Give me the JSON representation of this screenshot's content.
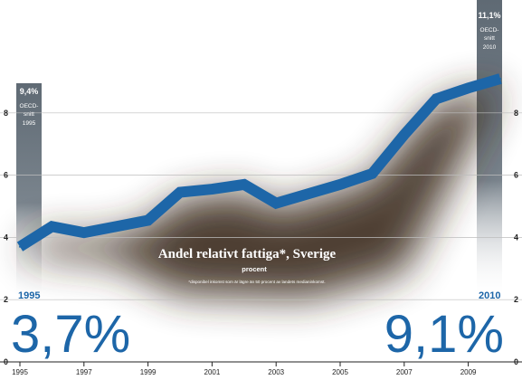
{
  "chart_data": {
    "type": "line",
    "title": "Andel relativt fattiga*, Sverige",
    "subtitle": "procent",
    "footnote": "*disponibel inkomst som är lägre än 50 procent av landets medianinkomst.",
    "x": [
      1995,
      1996,
      1997,
      1998,
      1999,
      2000,
      2001,
      2002,
      2003,
      2004,
      2005,
      2006,
      2007,
      2008,
      2009,
      2010
    ],
    "series": [
      {
        "values": [
          3.7,
          4.35,
          4.15,
          4.35,
          4.55,
          5.45,
          5.55,
          5.7,
          5.1,
          5.4,
          5.7,
          6.05,
          7.3,
          8.45,
          8.8,
          9.1
        ]
      }
    ],
    "xticks": [
      "1995",
      "1997",
      "1999",
      "2001",
      "2003",
      "2005",
      "2007",
      "2009"
    ],
    "yticks": [
      "0",
      "2",
      "4",
      "6",
      "8"
    ],
    "ylim": [
      0,
      9.5
    ],
    "xlim": [
      1995,
      2010
    ],
    "grid": true,
    "colors": {
      "line": "#1d66a8",
      "bar": "#5f6a74",
      "text_blue": "#1d66a8",
      "shadow": "#3a2c1c"
    },
    "start": {
      "year": "1995",
      "value": "3,7%"
    },
    "end": {
      "year": "2010",
      "value": "9,1%"
    },
    "oecd_1995": {
      "value": "9,4%",
      "label_1": "OECD-",
      "label_2": "snitt",
      "year": "1995",
      "level": 9.4
    },
    "oecd_2010": {
      "value": "11,1%",
      "label_1": "OECD-",
      "label_2": "snitt",
      "year": "2010",
      "level": 11.1
    }
  }
}
